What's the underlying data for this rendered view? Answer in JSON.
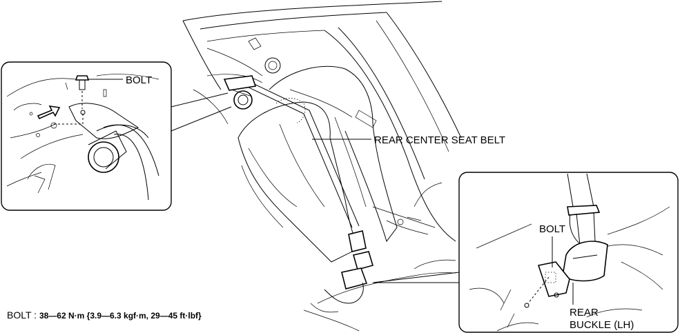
{
  "labels": {
    "bolt_top_left": "BOLT",
    "rear_center_seat_belt": "REAR CENTER SEAT BELT",
    "bolt_right": "BOLT",
    "rear_buckle_line1": "REAR",
    "rear_buckle_line2": "BUCKLE (LH)"
  },
  "spec": {
    "name": "BOLT",
    "separator": " : ",
    "value": "38—62 N·m {3.9—6.3 kgf·m, 29—45 ft·lbf}"
  }
}
